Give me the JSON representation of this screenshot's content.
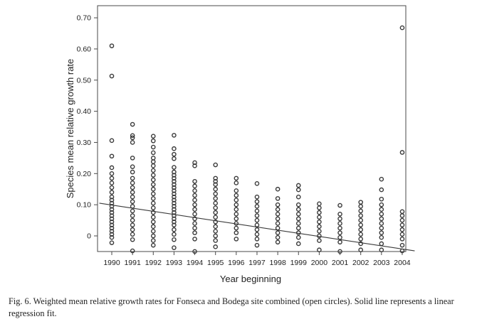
{
  "chart_data": {
    "type": "scatter",
    "title": "",
    "xlabel": "Year beginning",
    "ylabel": "Species mean relative growth rate",
    "categories": [
      "1990",
      "1991",
      "1992",
      "1993",
      "1994",
      "1995",
      "1996",
      "1997",
      "1998",
      "1999",
      "2000",
      "2001",
      "2002",
      "2003",
      "2004"
    ],
    "y_ticks": [
      0,
      0.1,
      0.2,
      0.3,
      0.4,
      0.5,
      0.6,
      0.7
    ],
    "y_tick_labels": [
      "0",
      "0.10",
      "0.20",
      "0.30",
      "0.40",
      "0.50",
      "0.60",
      "0.70"
    ],
    "ylim": [
      -0.055,
      0.74
    ],
    "grid": false,
    "fit_line": {
      "start": {
        "x": 1989.4,
        "y": 0.105
      },
      "end": {
        "x": 2004.6,
        "y": -0.048
      }
    },
    "points_by_year": {
      "1990": [
        0.61,
        0.513,
        0.306,
        0.256,
        0.219,
        0.2,
        0.185,
        0.17,
        0.155,
        0.14,
        0.125,
        0.115,
        0.105,
        0.095,
        0.085,
        0.075,
        0.065,
        0.055,
        0.045,
        0.035,
        0.025,
        0.015,
        0.005,
        -0.005,
        -0.022
      ],
      "1991": [
        0.358,
        0.322,
        0.315,
        0.3,
        0.25,
        0.222,
        0.205,
        0.185,
        0.17,
        0.155,
        0.14,
        0.125,
        0.11,
        0.095,
        0.08,
        0.065,
        0.05,
        0.035,
        0.02,
        0.005,
        -0.012,
        -0.048
      ],
      "1992": [
        0.32,
        0.305,
        0.285,
        0.267,
        0.25,
        0.238,
        0.225,
        0.21,
        0.195,
        0.18,
        0.165,
        0.15,
        0.135,
        0.12,
        0.105,
        0.09,
        0.075,
        0.06,
        0.045,
        0.03,
        0.015,
        0.0,
        -0.015,
        -0.03
      ],
      "1993": [
        0.323,
        0.28,
        0.262,
        0.248,
        0.22,
        0.205,
        0.195,
        0.185,
        0.175,
        0.165,
        0.155,
        0.145,
        0.135,
        0.125,
        0.115,
        0.105,
        0.095,
        0.085,
        0.075,
        0.065,
        0.055,
        0.045,
        0.035,
        0.02,
        0.005,
        -0.012,
        -0.038
      ],
      "1994": [
        0.235,
        0.225,
        0.175,
        0.16,
        0.145,
        0.13,
        0.115,
        0.1,
        0.085,
        0.07,
        0.055,
        0.04,
        0.025,
        0.01,
        -0.01,
        -0.05
      ],
      "1995": [
        0.228,
        0.185,
        0.175,
        0.165,
        0.15,
        0.135,
        0.12,
        0.105,
        0.09,
        0.075,
        0.06,
        0.045,
        0.03,
        0.015,
        0.0,
        -0.015,
        -0.035
      ],
      "1996": [
        0.185,
        0.17,
        0.145,
        0.13,
        0.115,
        0.1,
        0.085,
        0.07,
        0.055,
        0.04,
        0.025,
        0.01,
        -0.01
      ],
      "1997": [
        0.168,
        0.125,
        0.11,
        0.095,
        0.08,
        0.065,
        0.05,
        0.035,
        0.02,
        0.005,
        -0.01,
        -0.03
      ],
      "1998": [
        0.15,
        0.12,
        0.1,
        0.085,
        0.07,
        0.055,
        0.04,
        0.025,
        0.01,
        -0.005,
        -0.02
      ],
      "1999": [
        0.162,
        0.148,
        0.125,
        0.1,
        0.085,
        0.07,
        0.055,
        0.04,
        0.025,
        0.01,
        -0.005,
        -0.025
      ],
      "2000": [
        0.103,
        0.09,
        0.075,
        0.06,
        0.045,
        0.03,
        0.015,
        0.0,
        -0.015,
        -0.045
      ],
      "2001": [
        0.098,
        0.07,
        0.055,
        0.04,
        0.025,
        0.01,
        -0.005,
        -0.02,
        -0.05
      ],
      "2002": [
        0.108,
        0.095,
        0.08,
        0.065,
        0.05,
        0.035,
        0.02,
        0.005,
        -0.01,
        -0.025,
        -0.045
      ],
      "2003": [
        0.182,
        0.148,
        0.118,
        0.1,
        0.085,
        0.07,
        0.055,
        0.04,
        0.025,
        0.01,
        -0.005,
        -0.025,
        -0.045
      ],
      "2004": [
        0.668,
        0.268,
        0.078,
        0.065,
        0.05,
        0.035,
        0.02,
        0.005,
        -0.01,
        -0.03,
        -0.048
      ]
    }
  },
  "caption": "Fig. 6. Weighted mean relative growth rates for Fonseca and Bodega site combined (open circles). Solid line represents a linear regression fit."
}
